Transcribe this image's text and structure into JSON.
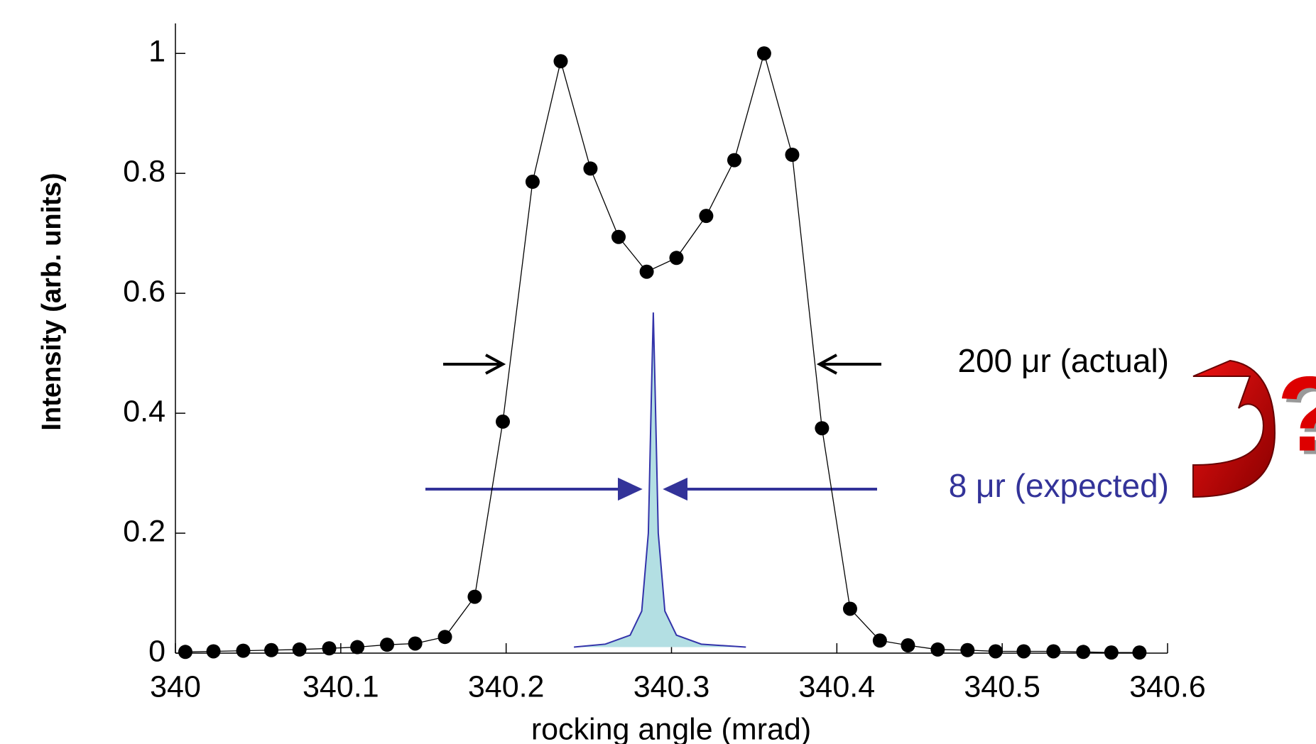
{
  "chart_data": {
    "type": "line",
    "x_label": "rocking angle (mrad)",
    "y_label": "Intensity (arb. units)",
    "xlim": [
      340,
      340.6
    ],
    "ylim": [
      0,
      1.05
    ],
    "xticks": [
      340,
      340.1,
      340.2,
      340.3,
      340.4,
      340.5,
      340.6
    ],
    "yticks": [
      0,
      0.2,
      0.4,
      0.6,
      0.8,
      1
    ],
    "series": [
      {
        "color": "#000000",
        "markers": true,
        "x": [
          340.006,
          340.023,
          340.041,
          340.058,
          340.075,
          340.093,
          340.11,
          340.128,
          340.145,
          340.163,
          340.181,
          340.198,
          340.216,
          340.233,
          340.251,
          340.268,
          340.285,
          340.303,
          340.321,
          340.338,
          340.356,
          340.373,
          340.391,
          340.408,
          340.426,
          340.443,
          340.461,
          340.479,
          340.496,
          340.513,
          340.531,
          340.549,
          340.566,
          340.583
        ],
        "values": [
          0.002,
          0.003,
          0.004,
          0.005,
          0.006,
          0.008,
          0.01,
          0.014,
          0.016,
          0.027,
          0.094,
          0.386,
          0.786,
          0.987,
          0.808,
          0.694,
          0.636,
          0.659,
          0.729,
          0.822,
          1.0,
          0.831,
          0.375,
          0.074,
          0.021,
          0.013,
          0.006,
          0.005,
          0.003,
          0.003,
          0.003,
          0.002,
          0.001,
          0.001
        ]
      },
      {
        "color": "#3333aa",
        "fill": "#b3dfe3",
        "markers": false,
        "x": [
          340.241,
          340.26,
          340.275,
          340.282,
          340.286,
          340.288,
          340.289,
          340.29,
          340.292,
          340.296,
          340.303,
          340.318,
          340.345
        ],
        "values": [
          0.01,
          0.015,
          0.03,
          0.07,
          0.2,
          0.45,
          0.568,
          0.45,
          0.2,
          0.07,
          0.03,
          0.015,
          0.01
        ]
      }
    ],
    "annotations": [
      {
        "text": "200 μr (actual)",
        "color": "#000000"
      },
      {
        "text": "8 μr (expected)",
        "color": "#333399"
      },
      {
        "text": "?",
        "color": "#dd0000"
      }
    ]
  }
}
